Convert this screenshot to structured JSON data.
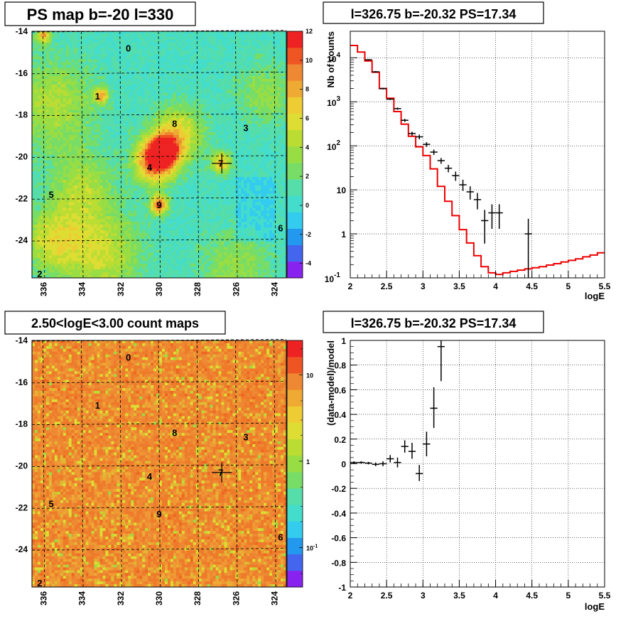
{
  "chart_data": [
    {
      "type": "heatmap",
      "title": "PS map b=-20 l=330",
      "xlim": [
        336.6,
        323.4
      ],
      "ylim": [
        -25.8,
        -14
      ],
      "x_ticks": [
        "336",
        "334",
        "332",
        "330",
        "328",
        "326",
        "324"
      ],
      "y_ticks": [
        "-14",
        "-16",
        "-18",
        "-20",
        "-22",
        "-24"
      ],
      "colorbar_ticks": [
        "12",
        "10",
        "8",
        "6",
        "4",
        "2",
        "0",
        "-2",
        "-4"
      ],
      "colorbar_range": [
        -5,
        12
      ],
      "colors": {
        "background": "#33ccee",
        "low": "#55ddcc",
        "mid": "#88dd55",
        "high": "#eeee44",
        "hot": "#ee2222"
      },
      "sources": [
        {
          "label": "0",
          "l": 331.6,
          "b": -14.8
        },
        {
          "label": "1",
          "l": 333.2,
          "b": -17.1
        },
        {
          "label": "2",
          "l": 336.2,
          "b": -25.6
        },
        {
          "label": "3",
          "l": 325.5,
          "b": -18.6
        },
        {
          "label": "4",
          "l": 330.5,
          "b": -20.5
        },
        {
          "label": "5",
          "l": 335.6,
          "b": -21.8
        },
        {
          "label": "6",
          "l": 323.7,
          "b": -23.4
        },
        {
          "label": "7",
          "l": 326.8,
          "b": -20.3
        },
        {
          "label": "8",
          "l": 329.2,
          "b": -18.4
        },
        {
          "label": "9",
          "l": 330.0,
          "b": -22.3
        }
      ],
      "hotspots": [
        {
          "l": 330.2,
          "b": -20.2,
          "r": 1.0,
          "v": 12
        },
        {
          "l": 329.7,
          "b": -19.7,
          "r": 0.7,
          "v": 10
        },
        {
          "l": 330.0,
          "b": -22.3,
          "r": 0.45,
          "v": 10
        },
        {
          "l": 333.0,
          "b": -17.1,
          "r": 0.35,
          "v": 8
        },
        {
          "l": 336.0,
          "b": -14.2,
          "r": 0.35,
          "v": 8
        },
        {
          "l": 326.8,
          "b": -20.3,
          "r": 0.5,
          "v": 7
        },
        {
          "l": 329.0,
          "b": -18.9,
          "r": 1.3,
          "v": 6
        },
        {
          "l": 333.0,
          "b": -24.6,
          "r": 2.0,
          "v": 5
        },
        {
          "l": 335.5,
          "b": -24.0,
          "r": 1.5,
          "v": 5
        },
        {
          "l": 335.5,
          "b": -17.5,
          "r": 2.2,
          "v": 4
        },
        {
          "l": 334.0,
          "b": -21.5,
          "r": 1.6,
          "v": 4
        },
        {
          "l": 324.5,
          "b": -17.0,
          "r": 1.5,
          "v": 3
        },
        {
          "l": 326.0,
          "b": -25.2,
          "r": 1.8,
          "v": 3
        }
      ],
      "marker": {
        "l": 326.75,
        "b": -20.32
      }
    },
    {
      "type": "line",
      "title": "l=326.75 b=-20.32 PS=17.34",
      "xlabel": "logE",
      "ylabel": "Nb of counts",
      "xlim": [
        2,
        5.5
      ],
      "ylim": [
        0.1,
        40000
      ],
      "y_scale": "log",
      "grid": true,
      "x_ticks": [
        "2",
        "2.5",
        "3",
        "3.5",
        "4",
        "4.5",
        "5",
        "5.5"
      ],
      "y_ticks": [
        {
          "value": 0.1,
          "base": "10",
          "exp": "-1",
          "text": ""
        },
        {
          "value": 1,
          "base": "",
          "exp": "",
          "text": "1"
        },
        {
          "value": 10,
          "base": "",
          "exp": "",
          "text": "10"
        },
        {
          "value": 100,
          "base": "10",
          "exp": "2",
          "text": ""
        },
        {
          "value": 1000,
          "base": "10",
          "exp": "3",
          "text": ""
        },
        {
          "value": 10000,
          "base": "10",
          "exp": "4",
          "text": ""
        }
      ],
      "model": {
        "edges": [
          2.0,
          2.1,
          2.2,
          2.3,
          2.4,
          2.5,
          2.6,
          2.7,
          2.8,
          2.9,
          3.0,
          3.1,
          3.2,
          3.3,
          3.4,
          3.5,
          3.6,
          3.7,
          3.8,
          3.9,
          4.0,
          4.1,
          4.2,
          4.3,
          4.4,
          4.5,
          4.6,
          4.7,
          4.8,
          4.9,
          5.0,
          5.1,
          5.2,
          5.3,
          5.4,
          5.5
        ],
        "values": [
          19000,
          13500,
          8500,
          4700,
          2000,
          1200,
          600,
          310,
          165,
          95,
          60,
          30,
          12,
          5.5,
          2.6,
          1.25,
          0.62,
          0.32,
          0.18,
          0.13,
          0.12,
          0.13,
          0.14,
          0.15,
          0.16,
          0.17,
          0.18,
          0.195,
          0.21,
          0.23,
          0.25,
          0.27,
          0.3,
          0.33,
          0.37
        ]
      },
      "data": [
        {
          "x": 2.25,
          "y": 9000,
          "lo": 8700,
          "hi": 9300
        },
        {
          "x": 2.35,
          "y": 4800,
          "lo": 4600,
          "hi": 5000
        },
        {
          "x": 2.45,
          "y": 2000,
          "lo": 1920,
          "hi": 2080
        },
        {
          "x": 2.55,
          "y": 1150,
          "lo": 1100,
          "hi": 1200
        },
        {
          "x": 2.65,
          "y": 700,
          "lo": 660,
          "hi": 740
        },
        {
          "x": 2.75,
          "y": 380,
          "lo": 350,
          "hi": 410
        },
        {
          "x": 2.85,
          "y": 190,
          "lo": 170,
          "hi": 210
        },
        {
          "x": 2.95,
          "y": 160,
          "lo": 140,
          "hi": 180
        },
        {
          "x": 3.05,
          "y": 108,
          "lo": 95,
          "hi": 121
        },
        {
          "x": 3.15,
          "y": 72,
          "lo": 62,
          "hi": 82
        },
        {
          "x": 3.25,
          "y": 46,
          "lo": 39,
          "hi": 53
        },
        {
          "x": 3.35,
          "y": 31,
          "lo": 25,
          "hi": 37
        },
        {
          "x": 3.45,
          "y": 21,
          "lo": 16,
          "hi": 26
        },
        {
          "x": 3.55,
          "y": 13,
          "lo": 9.5,
          "hi": 17
        },
        {
          "x": 3.65,
          "y": 9,
          "lo": 6,
          "hi": 12
        },
        {
          "x": 3.75,
          "y": 6,
          "lo": 3.6,
          "hi": 8.5
        },
        {
          "x": 3.85,
          "y": 2,
          "lo": 0.6,
          "hi": 3.5
        },
        {
          "x": 3.95,
          "y": 3,
          "lo": 1.3,
          "hi": 4.7
        },
        {
          "x": 4.05,
          "y": 3,
          "lo": 1.3,
          "hi": 4.7
        },
        {
          "x": 4.45,
          "y": 1,
          "lo": 0.1,
          "hi": 2.2
        }
      ]
    },
    {
      "type": "heatmap",
      "title": "2.50<logE<3.00 count maps",
      "xlim": [
        336.6,
        323.4
      ],
      "ylim": [
        -25.8,
        -14
      ],
      "x_ticks": [
        "336",
        "334",
        "332",
        "330",
        "328",
        "326",
        "324"
      ],
      "y_ticks": [
        "-14",
        "-16",
        "-18",
        "-20",
        "-22",
        "-24"
      ],
      "colorbar_ticks": [
        {
          "value": 10,
          "base": "10",
          "exp": ""
        },
        {
          "value": 1,
          "base": "1",
          "exp": ""
        },
        {
          "value": 0.1,
          "base": "10",
          "exp": "-1"
        }
      ],
      "colors": {
        "dominant": "#ee8833",
        "warm": "#ee6622",
        "yellow": "#dddd33",
        "green": "#99dd44"
      },
      "sources": [
        {
          "label": "0",
          "l": 331.6,
          "b": -14.8
        },
        {
          "label": "1",
          "l": 333.2,
          "b": -17.1
        },
        {
          "label": "2",
          "l": 336.2,
          "b": -25.6
        },
        {
          "label": "3",
          "l": 325.5,
          "b": -18.6
        },
        {
          "label": "4",
          "l": 330.5,
          "b": -20.5
        },
        {
          "label": "5",
          "l": 335.6,
          "b": -21.8
        },
        {
          "label": "6",
          "l": 323.7,
          "b": -23.4
        },
        {
          "label": "7",
          "l": 326.8,
          "b": -20.3
        },
        {
          "label": "8",
          "l": 329.2,
          "b": -18.4
        },
        {
          "label": "9",
          "l": 330.0,
          "b": -22.3
        }
      ],
      "marker": {
        "l": 326.75,
        "b": -20.32
      }
    },
    {
      "type": "scatter",
      "title": "l=326.75 b=-20.32 PS=17.34",
      "xlabel": "logE",
      "ylabel": "(data-model)/model",
      "xlim": [
        2,
        5.5
      ],
      "ylim": [
        -1,
        1
      ],
      "grid": true,
      "x_ticks": [
        "2",
        "2.5",
        "3",
        "3.5",
        "4",
        "4.5",
        "5",
        "5.5"
      ],
      "y_ticks": [
        "-1",
        "-0.8",
        "-0.6",
        "-0.4",
        "-0.2",
        "0",
        "0.2",
        "0.4",
        "0.6",
        "0.8",
        "1"
      ],
      "data": [
        {
          "x": 2.05,
          "y": 0.01,
          "lo": 0.0,
          "hi": 0.02
        },
        {
          "x": 2.15,
          "y": 0.01,
          "lo": 0.0,
          "hi": 0.02
        },
        {
          "x": 2.25,
          "y": 0.005,
          "lo": -0.005,
          "hi": 0.015
        },
        {
          "x": 2.35,
          "y": -0.005,
          "lo": -0.02,
          "hi": 0.01
        },
        {
          "x": 2.45,
          "y": 0.0,
          "lo": -0.02,
          "hi": 0.02
        },
        {
          "x": 2.55,
          "y": 0.04,
          "lo": 0.01,
          "hi": 0.07
        },
        {
          "x": 2.65,
          "y": 0.01,
          "lo": -0.03,
          "hi": 0.05
        },
        {
          "x": 2.75,
          "y": 0.14,
          "lo": 0.09,
          "hi": 0.19
        },
        {
          "x": 2.85,
          "y": 0.1,
          "lo": 0.04,
          "hi": 0.17
        },
        {
          "x": 2.95,
          "y": -0.08,
          "lo": -0.14,
          "hi": -0.01
        },
        {
          "x": 3.05,
          "y": 0.16,
          "lo": 0.06,
          "hi": 0.26
        },
        {
          "x": 3.15,
          "y": 0.45,
          "lo": 0.29,
          "hi": 0.62
        },
        {
          "x": 3.25,
          "y": 0.95,
          "lo": 0.67,
          "hi": 1.0
        }
      ]
    }
  ]
}
